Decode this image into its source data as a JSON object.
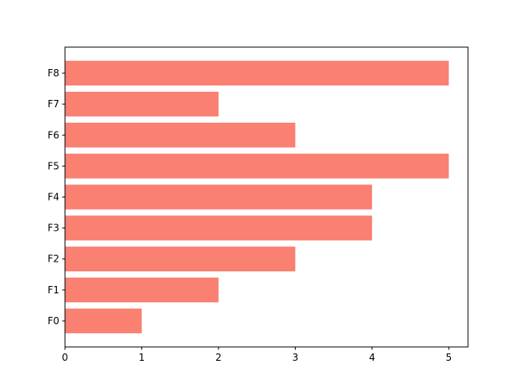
{
  "chart_data": {
    "type": "barh",
    "categories": [
      "F0",
      "F1",
      "F2",
      "F3",
      "F4",
      "F5",
      "F6",
      "F7",
      "F8"
    ],
    "values": [
      1,
      2,
      3,
      4,
      4,
      5,
      3,
      2,
      5
    ],
    "color": "#fa8072",
    "xlim": [
      0,
      5.25
    ],
    "xticks": [
      0,
      1,
      2,
      3,
      4,
      5
    ]
  }
}
